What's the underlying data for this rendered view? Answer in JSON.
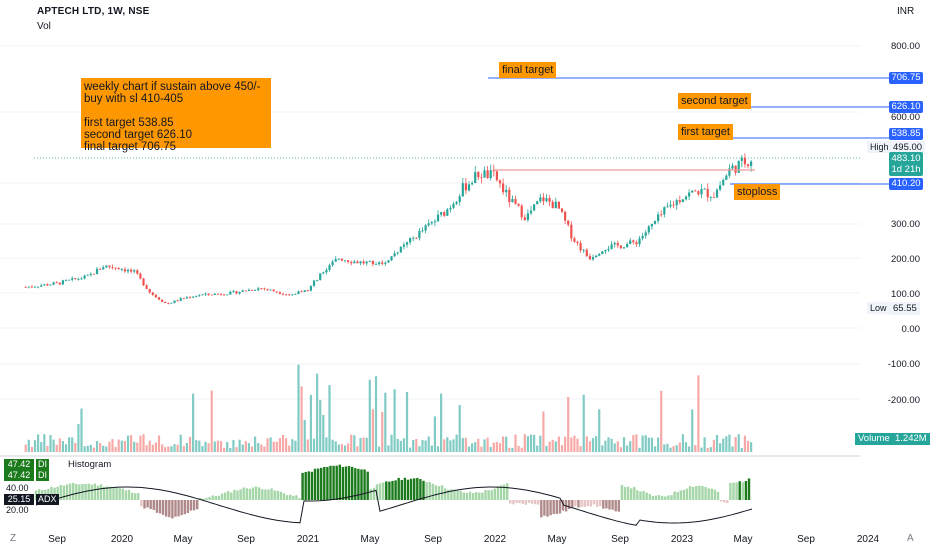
{
  "header": {
    "title": "APTECH LTD, 1W, NSE",
    "volume_label": "Vol",
    "currency": "INR"
  },
  "note": {
    "text": "weekly chart if sustain above 450/-\nbuy with sl 410-405\n\nfirst target 538.85\nsecond target 626.10\nfinal target 706.75"
  },
  "levels": {
    "final": {
      "label": "final target",
      "price": "706.75"
    },
    "second": {
      "label": "second target",
      "price": "626.10"
    },
    "first": {
      "label": "first target",
      "price": "538.85"
    },
    "stop": {
      "label": "stoploss",
      "price": "410.20"
    }
  },
  "price_axis": {
    "ticks": [
      "800.00",
      "700.00",
      "600.00",
      "495.00",
      "300.00",
      "200.00",
      "100.00",
      "0.00",
      "-100.00",
      "-200.00"
    ],
    "high_label": "High",
    "high_value": "495.00",
    "low_label": "Low",
    "low_value": "65.55",
    "last_price": "483.10",
    "countdown": "1d 21h"
  },
  "volume": {
    "label": "Volume",
    "value": "1.242M"
  },
  "adx": {
    "di_plus": "47.42",
    "di_minus": "47.42",
    "adx_value": "25.15",
    "di_label_1": "DI",
    "di_label_2": "DI",
    "adx_label": "ADX",
    "histogram_label": "Histogram",
    "axis_ticks": [
      "40.00",
      "20.00"
    ]
  },
  "x_axis": {
    "ticks": [
      "Sep",
      "2020",
      "May",
      "Sep",
      "2021",
      "May",
      "Sep",
      "2022",
      "May",
      "Sep",
      "2023",
      "May",
      "Sep",
      "2024"
    ],
    "left_icon": "Z",
    "right_icon": "A"
  },
  "colors": {
    "up": "#26a69a",
    "down": "#ef5350",
    "target_line": "#2962ff",
    "annotation": "#ff9800",
    "resistance": "#ef9a9a"
  },
  "chart_data": {
    "type": "candlestick",
    "series_name": "APTECH LTD",
    "interval": "1W",
    "ylim": [
      0,
      800
    ],
    "anchors": [
      [
        "2019-07",
        118
      ],
      [
        "2019-09",
        128
      ],
      [
        "2019-11",
        148
      ],
      [
        "2019-12",
        178
      ],
      [
        "2020-01",
        172
      ],
      [
        "2020-02",
        158
      ],
      [
        "2020-03",
        100
      ],
      [
        "2020-04",
        70
      ],
      [
        "2020-05",
        85
      ],
      [
        "2020-06",
        95
      ],
      [
        "2020-08",
        100
      ],
      [
        "2020-10",
        115
      ],
      [
        "2020-12",
        95
      ],
      [
        "2021-01",
        110
      ],
      [
        "2021-02",
        160
      ],
      [
        "2021-03",
        200
      ],
      [
        "2021-04",
        190
      ],
      [
        "2021-05",
        185
      ],
      [
        "2021-06",
        190
      ],
      [
        "2021-07",
        225
      ],
      [
        "2021-08",
        265
      ],
      [
        "2021-09",
        300
      ],
      [
        "2021-10",
        340
      ],
      [
        "2021-11",
        400
      ],
      [
        "2021-12",
        440
      ],
      [
        "2022-01",
        430
      ],
      [
        "2022-02",
        360
      ],
      [
        "2022-03",
        315
      ],
      [
        "2022-04",
        370
      ],
      [
        "2022-05",
        345
      ],
      [
        "2022-06",
        255
      ],
      [
        "2022-07",
        200
      ],
      [
        "2022-08",
        230
      ],
      [
        "2022-09",
        235
      ],
      [
        "2022-10",
        245
      ],
      [
        "2022-11",
        290
      ],
      [
        "2022-12",
        340
      ],
      [
        "2023-01",
        375
      ],
      [
        "2023-02",
        390
      ],
      [
        "2023-03",
        380
      ],
      [
        "2023-04",
        450
      ],
      [
        "2023-05",
        483
      ]
    ],
    "high": 495.0,
    "low": 65.55,
    "last": 483.1,
    "horizontal_levels": [
      706.75,
      626.1,
      538.85,
      410.2,
      450
    ]
  }
}
